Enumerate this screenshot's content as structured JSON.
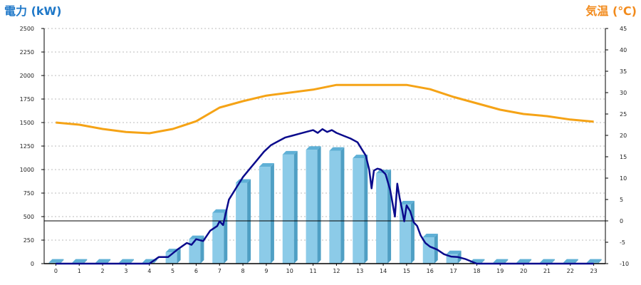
{
  "chart_data": {
    "type": "bar",
    "left_axis_title": "電力 (kW)",
    "right_axis_title": "気温 (℃)",
    "x": [
      "0",
      "1",
      "2",
      "3",
      "4",
      "5",
      "6",
      "7",
      "8",
      "9",
      "10",
      "11",
      "12",
      "13",
      "14",
      "15",
      "16",
      "17",
      "18",
      "19",
      "20",
      "21",
      "22",
      "23"
    ],
    "left_ticks": [
      "0",
      "250",
      "500",
      "750",
      "1000",
      "1250",
      "1500",
      "1750",
      "2000",
      "2250",
      "2500"
    ],
    "right_ticks": [
      "-10",
      "-5",
      "0",
      "5",
      "10",
      "15",
      "20",
      "25",
      "30",
      "35",
      "40",
      "45"
    ],
    "ylim_left": [
      0,
      2500
    ],
    "ylim_right": [
      -10,
      45
    ],
    "reference_line_value": 0,
    "grid": true,
    "colors": {
      "bar": "#8ccbe8",
      "bar_side": "#4f9fc4",
      "bar_top": "#5fb0d6",
      "power_line": "#0a0a8c",
      "temperature_line": "#f5a316",
      "grid": "#bbbbbb"
    },
    "bar_series": {
      "values": [
        10,
        10,
        10,
        10,
        10,
        120,
        260,
        540,
        860,
        1030,
        1160,
        1210,
        1200,
        1120,
        960,
        630,
        280,
        100,
        10,
        10,
        10,
        10,
        10,
        10
      ]
    },
    "power_line": {
      "x": [
        0,
        1,
        2,
        3,
        4,
        4.4,
        4.8,
        5.2,
        5.6,
        5.8,
        6.0,
        6.3,
        6.6,
        6.9,
        7.0,
        7.15,
        7.4,
        7.7,
        8.0,
        8.3,
        8.6,
        8.9,
        9.2,
        9.5,
        9.8,
        10.1,
        10.4,
        10.7,
        11.0,
        11.2,
        11.4,
        11.6,
        11.8,
        12.0,
        12.3,
        12.6,
        12.9,
        13.1,
        13.25,
        13.4,
        13.5,
        13.6,
        13.75,
        13.9,
        14.1,
        14.3,
        14.5,
        14.6,
        14.7,
        14.8,
        14.9,
        15.0,
        15.15,
        15.3,
        15.45,
        15.6,
        15.8,
        16.0,
        16.3,
        16.6,
        16.9,
        17.2,
        17.5,
        17.8,
        18.0,
        19,
        20,
        21,
        22,
        23
      ],
      "y": [
        0,
        0,
        0,
        0,
        0,
        70,
        70,
        150,
        220,
        200,
        260,
        240,
        350,
        400,
        450,
        410,
        680,
        800,
        920,
        1010,
        1100,
        1190,
        1260,
        1300,
        1340,
        1360,
        1380,
        1400,
        1420,
        1390,
        1430,
        1400,
        1420,
        1390,
        1360,
        1330,
        1290,
        1210,
        1150,
        1000,
        800,
        990,
        1010,
        1000,
        950,
        780,
        500,
        850,
        700,
        580,
        450,
        620,
        560,
        440,
        400,
        300,
        220,
        180,
        150,
        100,
        75,
        70,
        50,
        20,
        0,
        0,
        0,
        0,
        0,
        0
      ]
    },
    "temperature_line": {
      "x": [
        0,
        1,
        2,
        3,
        4,
        5,
        6,
        7,
        8,
        9,
        10,
        11,
        12,
        13,
        14,
        15,
        16,
        17,
        18,
        19,
        20,
        21,
        22,
        23
      ],
      "y": [
        23,
        22.5,
        21.5,
        20.8,
        20.5,
        21.5,
        23.3,
        26.5,
        28,
        29.3,
        30,
        30.7,
        31.8,
        31.8,
        31.8,
        31.8,
        30.8,
        29,
        27.5,
        26,
        25,
        24.5,
        23.7,
        23.2
      ]
    }
  }
}
